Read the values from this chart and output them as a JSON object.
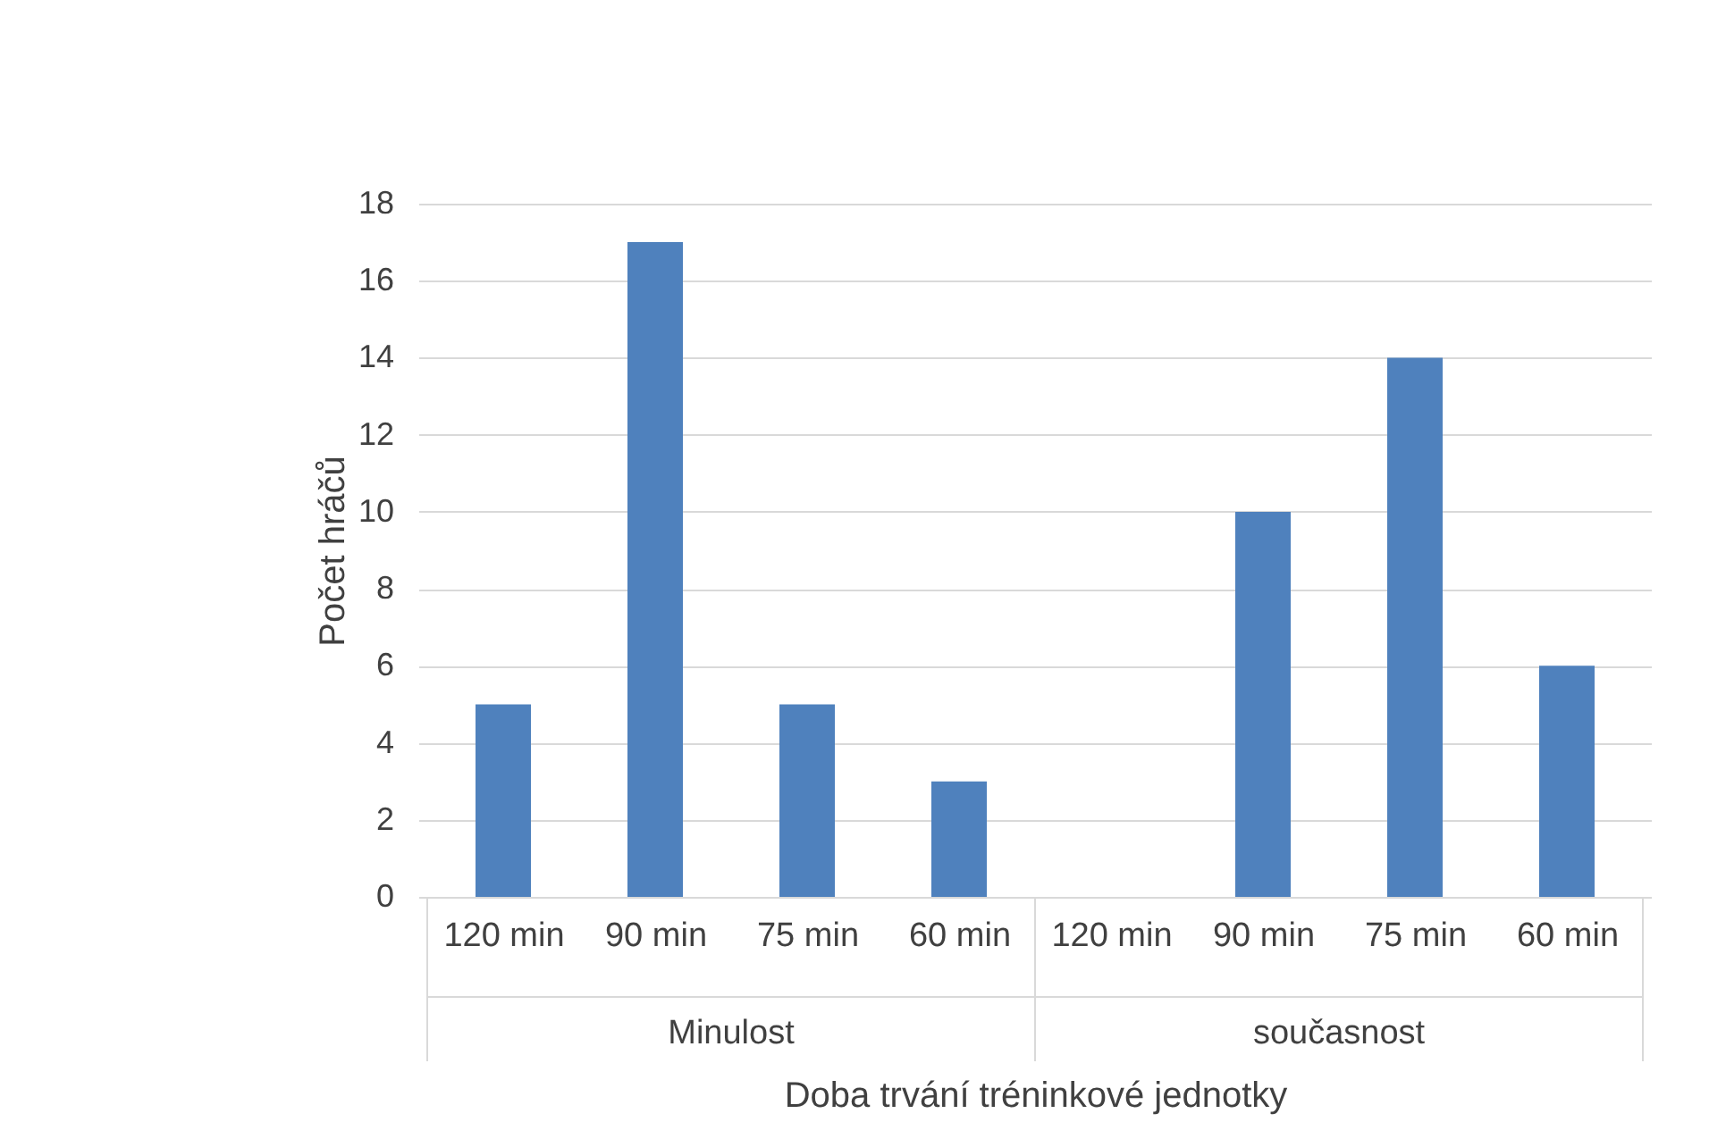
{
  "chart_data": {
    "type": "bar",
    "categories": [
      "120 min",
      "90 min",
      "75 min",
      "60 min",
      "120 min",
      "90 min",
      "75 min",
      "60 min"
    ],
    "values": [
      5,
      17,
      5,
      3,
      0,
      10,
      14,
      6
    ],
    "color": "#4f81bd",
    "xlabel": "Doba trvání tréninkové jednotky",
    "ylabel": "Počet hráčů",
    "annotations": [
      "Minulost",
      "současnost"
    ],
    "ylim": [
      0,
      18
    ],
    "yticks": [
      0,
      2,
      4,
      6,
      8,
      10,
      12,
      14,
      16,
      18
    ],
    "grid": "y"
  }
}
